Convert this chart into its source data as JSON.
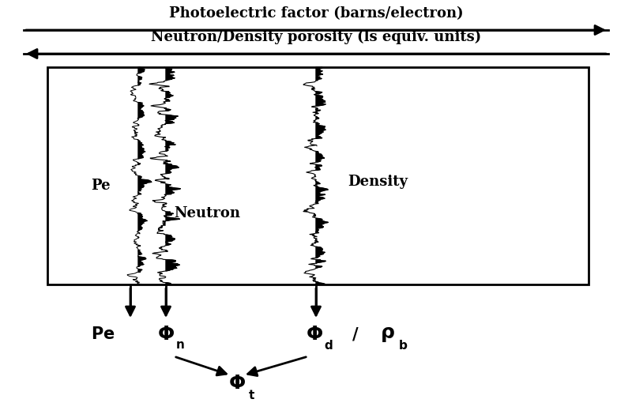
{
  "title_pe": "Photoelectric factor (barns/electron)",
  "title_nd": "Neutron/Density porosity (ls equiv. units)",
  "label_pe": "Pe",
  "label_neutron": "Neutron",
  "label_density": "Density",
  "bg_color": "#ffffff",
  "figsize": [
    8.0,
    5.29
  ],
  "dpi": 100
}
